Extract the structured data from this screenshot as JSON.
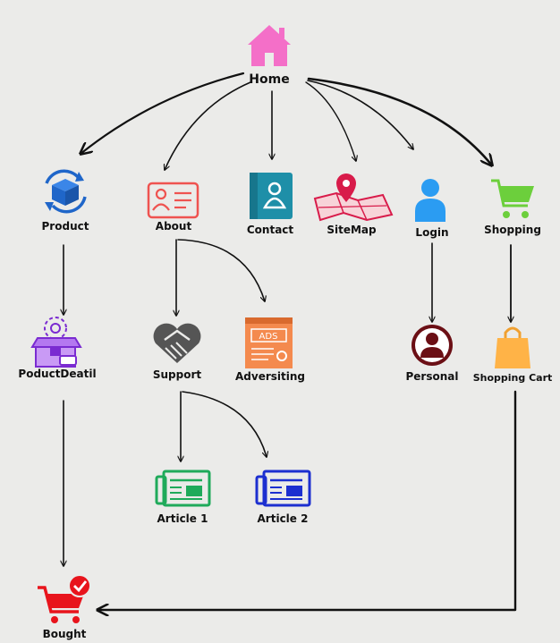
{
  "diagram": {
    "nodes": {
      "home": {
        "label": "Home",
        "icon": "house-icon",
        "color": "#f46fc8"
      },
      "product": {
        "label": "Product",
        "icon": "box-icon",
        "color": "#1f66c9"
      },
      "about": {
        "label": "About",
        "icon": "id-card-icon",
        "color": "#ef5350"
      },
      "contact": {
        "label": "Contact",
        "icon": "contact-book-icon",
        "color": "#1e8fa8"
      },
      "sitemap": {
        "label": "SiteMap",
        "icon": "map-pin-icon",
        "color": "#d81b4a"
      },
      "login": {
        "label": "Login",
        "icon": "user-icon",
        "color": "#2b9cf2"
      },
      "shopping": {
        "label": "Shopping",
        "icon": "cart-icon",
        "color": "#6ccf3c"
      },
      "product_detail": {
        "label": "PoductDeatil",
        "icon": "open-box-icon",
        "color": "#7a2bd1"
      },
      "support": {
        "label": "Support",
        "icon": "handshake-icon",
        "color": "#555555"
      },
      "advertising": {
        "label": "Adversiting",
        "icon": "ads-browser-icon",
        "color": "#f48a4e",
        "icon_text": "ADS"
      },
      "personal": {
        "label": "Personal",
        "icon": "profile-icon",
        "color": "#6b0f15"
      },
      "shopping_cart": {
        "label": "Shopping Cart",
        "icon": "shopping-bag-icon",
        "color": "#ffb347"
      },
      "article1": {
        "label": "Article 1",
        "icon": "newspaper-icon",
        "color": "#1faa5a"
      },
      "article2": {
        "label": "Article 2",
        "icon": "newspaper-icon",
        "color": "#1c2fd0"
      },
      "bought": {
        "label": "Bought",
        "icon": "cart-check-icon",
        "color": "#e8141c"
      }
    },
    "edges": [
      {
        "from": "Home",
        "to": "Product"
      },
      {
        "from": "Home",
        "to": "About"
      },
      {
        "from": "Home",
        "to": "Contact"
      },
      {
        "from": "Home",
        "to": "SiteMap"
      },
      {
        "from": "Home",
        "to": "Login"
      },
      {
        "from": "Home",
        "to": "Shopping"
      },
      {
        "from": "Product",
        "to": "PoductDeatil"
      },
      {
        "from": "About",
        "to": "Support"
      },
      {
        "from": "About",
        "to": "Adversiting"
      },
      {
        "from": "Support",
        "to": "Article 1"
      },
      {
        "from": "Support",
        "to": "Article 2"
      },
      {
        "from": "Login",
        "to": "Personal"
      },
      {
        "from": "Shopping",
        "to": "Shopping Cart"
      },
      {
        "from": "PoductDeatil",
        "to": "Bought"
      },
      {
        "from": "Shopping Cart",
        "to": "Bought"
      }
    ]
  }
}
